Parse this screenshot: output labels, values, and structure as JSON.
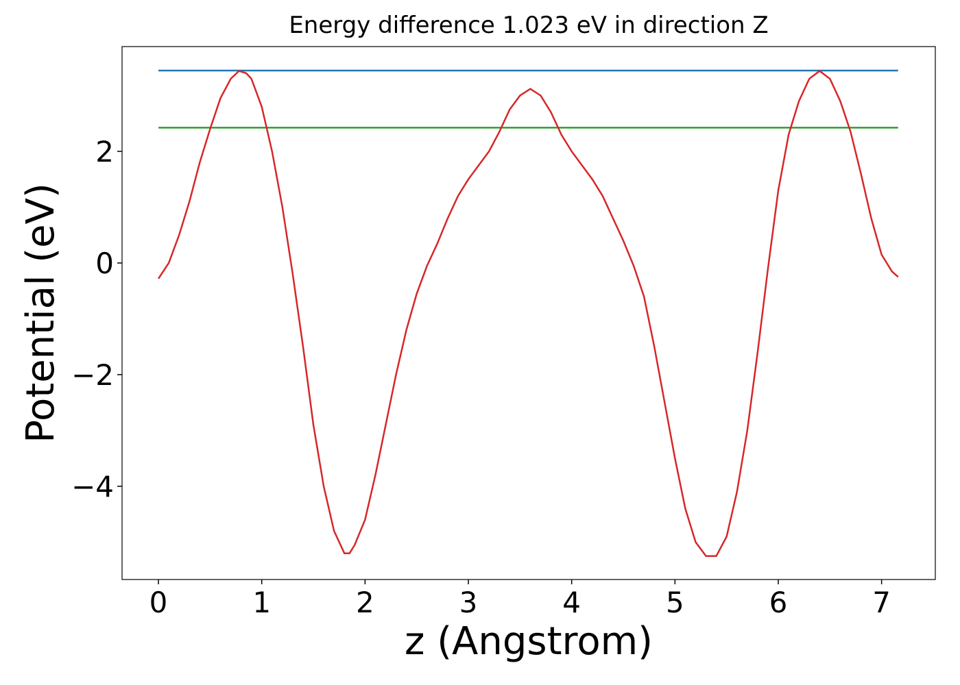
{
  "chart_data": {
    "type": "line",
    "title": "Energy difference 1.023 eV in direction Z",
    "x_label": "z (Angstrom)",
    "y_label": "Potential (eV)",
    "xlim": [
      -0.352,
      7.52
    ],
    "ylim": [
      -5.67,
      3.877
    ],
    "xticks": [
      0,
      1,
      2,
      3,
      4,
      5,
      6,
      7
    ],
    "yticks": [
      {
        "value": -4,
        "label": "−4"
      },
      {
        "value": -2,
        "label": "−2"
      },
      0,
      2
    ],
    "series": [
      {
        "color": "#1f77b4",
        "x": [
          0,
          7.16
        ],
        "values": [
          3.448,
          3.448
        ]
      },
      {
        "color": "#2ca02c",
        "x": [
          0,
          7.16
        ],
        "values": [
          2.425,
          2.425
        ]
      },
      {
        "color": "#d62728",
        "x": [
          0,
          0.1,
          0.2,
          0.3,
          0.4,
          0.5,
          0.6,
          0.7,
          0.78,
          0.85,
          0.9,
          1.0,
          1.1,
          1.2,
          1.3,
          1.4,
          1.5,
          1.6,
          1.7,
          1.8,
          1.85,
          1.9,
          2.0,
          2.1,
          2.2,
          2.3,
          2.4,
          2.5,
          2.6,
          2.7,
          2.8,
          2.9,
          3.0,
          3.1,
          3.2,
          3.3,
          3.4,
          3.5,
          3.6,
          3.7,
          3.8,
          3.9,
          4.0,
          4.1,
          4.2,
          4.3,
          4.4,
          4.5,
          4.6,
          4.7,
          4.8,
          4.9,
          5.0,
          5.1,
          5.2,
          5.3,
          5.4,
          5.5,
          5.6,
          5.7,
          5.8,
          5.9,
          6.0,
          6.1,
          6.2,
          6.3,
          6.4,
          6.5,
          6.6,
          6.7,
          6.8,
          6.9,
          7.0,
          7.1,
          7.16
        ],
        "values": [
          -0.28,
          0.0,
          0.5,
          1.1,
          1.8,
          2.4,
          2.95,
          3.3,
          3.44,
          3.4,
          3.3,
          2.8,
          2.0,
          1.0,
          -0.2,
          -1.5,
          -2.9,
          -4.0,
          -4.8,
          -5.2,
          -5.2,
          -5.05,
          -4.6,
          -3.8,
          -2.9,
          -2.0,
          -1.2,
          -0.55,
          -0.05,
          0.35,
          0.8,
          1.2,
          1.5,
          1.75,
          2.0,
          2.35,
          2.75,
          3.0,
          3.12,
          3.0,
          2.7,
          2.3,
          2.0,
          1.75,
          1.5,
          1.2,
          0.8,
          0.4,
          -0.05,
          -0.6,
          -1.5,
          -2.5,
          -3.5,
          -4.4,
          -5.0,
          -5.25,
          -5.25,
          -4.9,
          -4.1,
          -3.0,
          -1.6,
          -0.1,
          1.3,
          2.3,
          2.9,
          3.3,
          3.44,
          3.3,
          2.9,
          2.35,
          1.6,
          0.8,
          0.15,
          -0.15,
          -0.25
        ]
      }
    ]
  }
}
